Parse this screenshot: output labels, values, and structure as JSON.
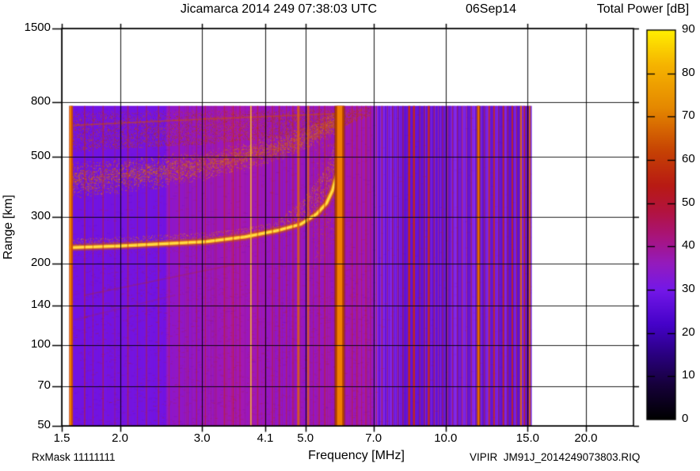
{
  "header": {
    "title": "Jicamarca 2014 249 07:38:03 UTC",
    "date_label": "06Sep14"
  },
  "colorbar": {
    "title": "Total Power [dB]",
    "min": 0,
    "max": 90,
    "tick_values": [
      90,
      80,
      70,
      60,
      50,
      40,
      30,
      20,
      10,
      0
    ],
    "gradient_stops": [
      {
        "v": 0,
        "c": "#000000"
      },
      {
        "v": 8,
        "c": "#16003a"
      },
      {
        "v": 15,
        "c": "#2a0080"
      },
      {
        "v": 22,
        "c": "#4502c9"
      },
      {
        "v": 30,
        "c": "#7418e8"
      },
      {
        "v": 36,
        "c": "#941bbd"
      },
      {
        "v": 42,
        "c": "#a8147e"
      },
      {
        "v": 48,
        "c": "#b21340"
      },
      {
        "v": 54,
        "c": "#b81a14"
      },
      {
        "v": 62,
        "c": "#c64204"
      },
      {
        "v": 72,
        "c": "#e58800"
      },
      {
        "v": 82,
        "c": "#f6b400"
      },
      {
        "v": 90,
        "c": "#ffef00"
      }
    ]
  },
  "axes": {
    "x": {
      "label": "Frequency [MHz]",
      "scale": "log",
      "min": 1.5,
      "max": 25.3,
      "ticks": [
        {
          "v": 1.5,
          "label": "1.5"
        },
        {
          "v": 2,
          "label": "2.0"
        },
        {
          "v": 3,
          "label": "3.0"
        },
        {
          "v": 4.1,
          "label": "4.1"
        },
        {
          "v": 5,
          "label": "5.0"
        },
        {
          "v": 7,
          "label": "7.0"
        },
        {
          "v": 10,
          "label": "10.0"
        },
        {
          "v": 15,
          "label": "15.0"
        },
        {
          "v": 20,
          "label": "20.0"
        }
      ]
    },
    "y": {
      "label": "Range [km]",
      "scale": "log",
      "min": 50,
      "max": 1500,
      "ticks": [
        {
          "v": 1500,
          "label": "1500"
        },
        {
          "v": 800,
          "label": "800"
        },
        {
          "v": 500,
          "label": "500"
        },
        {
          "v": 300,
          "label": "300"
        },
        {
          "v": 200,
          "label": "200"
        },
        {
          "v": 140,
          "label": "140"
        },
        {
          "v": 100,
          "label": "100"
        },
        {
          "v": 70,
          "label": "70"
        },
        {
          "v": 50,
          "label": "50"
        }
      ]
    }
  },
  "footer": {
    "left": "RxMask 11111111",
    "right": "VIPIR  JM91J_2014249073803.RIQ"
  },
  "chart_data": {
    "type": "heatmap",
    "title": "Jicamarca 2014 249 07:38:03 UTC 06Sep14",
    "xlabel": "Frequency [MHz]",
    "ylabel": "Range [km]",
    "zlabel": "Total Power [dB]",
    "x_scale": "log",
    "y_scale": "log",
    "x_range": [
      1.5,
      25.3
    ],
    "y_range": [
      50,
      1500
    ],
    "z_range": [
      0,
      90
    ],
    "data_extent": {
      "f_min": 1.555,
      "f_max": 15.3,
      "r_min": 50,
      "r_max": 775
    },
    "start_frequency_mhz": 1.56,
    "critical_frequency_mhz": 5.94,
    "background_level_db": 30,
    "f_layer_trace_mhz_km": [
      [
        1.57,
        230
      ],
      [
        1.99,
        233
      ],
      [
        2.52,
        238
      ],
      [
        3.06,
        242
      ],
      [
        3.71,
        252
      ],
      [
        4.35,
        266
      ],
      [
        4.89,
        281
      ],
      [
        5.29,
        307
      ],
      [
        5.55,
        336
      ],
      [
        5.72,
        376
      ],
      [
        5.86,
        437
      ],
      [
        5.9,
        520
      ],
      [
        5.93,
        620
      ],
      [
        5.94,
        695
      ]
    ],
    "second_hop_trace_mhz_km": [
      [
        1.57,
        410
      ],
      [
        1.99,
        425
      ],
      [
        2.52,
        445
      ],
      [
        3.06,
        468
      ],
      [
        3.71,
        503
      ],
      [
        4.35,
        539
      ],
      [
        5.07,
        594
      ],
      [
        5.72,
        666
      ],
      [
        6.04,
        709
      ]
    ],
    "noise_band_top_km": 775,
    "noise_band_bottom_mhz_km": [
      [
        1.57,
        525
      ],
      [
        3.0,
        558
      ],
      [
        4.35,
        590
      ],
      [
        6.0,
        650
      ],
      [
        6.9,
        715
      ]
    ],
    "faint_echo_line_mhz_km": [
      [
        1.6,
        655
      ],
      [
        3.0,
        690
      ],
      [
        6.0,
        725
      ]
    ],
    "faint_diagonals_mhz_km": [
      [
        [
          1.68,
          153
        ],
        [
          3.57,
          200
        ]
      ],
      [
        [
          1.6,
          124
        ],
        [
          2.62,
          153
        ]
      ]
    ],
    "rfi_bands": [
      {
        "f0": 5.79,
        "f1": 6.06,
        "core": "#ef7e02",
        "edge": "#b04000"
      },
      {
        "f0": 11.68,
        "f1": 11.84,
        "core": "#e87206",
        "edge": "#b84400"
      }
    ],
    "rfi_lines_f_w_color_alpha": [
      [
        1.565,
        3.2,
        "#f28a00",
        1
      ],
      [
        1.578,
        2.4,
        "#cc4c00",
        0.9
      ],
      [
        1.68,
        1.5,
        "#c92806",
        0.55
      ],
      [
        1.75,
        1,
        "#c92806",
        0.45
      ],
      [
        1.84,
        1.5,
        "#c92806",
        0.5
      ],
      [
        1.95,
        1,
        "#c92806",
        0.4
      ],
      [
        2.08,
        1.5,
        "#c92806",
        0.55
      ],
      [
        2.18,
        1,
        "#c92806",
        0.4
      ],
      [
        2.28,
        1.5,
        "#c92806",
        0.45
      ],
      [
        2.42,
        1.5,
        "#c92806",
        0.5
      ],
      [
        2.55,
        1,
        "#c92806",
        0.4
      ],
      [
        2.68,
        1.5,
        "#c92806",
        0.5
      ],
      [
        2.8,
        1,
        "#c92806",
        0.4
      ],
      [
        2.92,
        1.5,
        "#c92806",
        0.45
      ],
      [
        3.05,
        1.5,
        "#c92806",
        0.5
      ],
      [
        3.2,
        1,
        "#c92806",
        0.4
      ],
      [
        3.35,
        1.5,
        "#c92806",
        0.5
      ],
      [
        3.5,
        1.5,
        "#c92806",
        0.55
      ],
      [
        3.62,
        1,
        "#c92806",
        0.45
      ],
      [
        3.82,
        1.5,
        "#ffd02a",
        0.9
      ],
      [
        3.95,
        1.5,
        "#c92806",
        0.5
      ],
      [
        4.1,
        1,
        "#c92806",
        0.4
      ],
      [
        4.25,
        1.5,
        "#c92806",
        0.5
      ],
      [
        4.4,
        1.5,
        "#c92806",
        0.55
      ],
      [
        4.55,
        1,
        "#c92806",
        0.45
      ],
      [
        4.7,
        1.5,
        "#c92806",
        0.5
      ],
      [
        4.83,
        3,
        "#e06010",
        0.85
      ],
      [
        5.07,
        2.5,
        "#e06010",
        0.8
      ],
      [
        5.2,
        1,
        "#c92806",
        0.45
      ],
      [
        5.35,
        1.5,
        "#c92806",
        0.5
      ],
      [
        5.5,
        1.5,
        "#c92806",
        0.55
      ],
      [
        6.3,
        1.5,
        "#c92806",
        0.5
      ],
      [
        6.45,
        1.5,
        "#c92806",
        0.55
      ],
      [
        6.6,
        1,
        "#c92806",
        0.45
      ],
      [
        6.75,
        1.5,
        "#c92806",
        0.5
      ],
      [
        6.9,
        1,
        "#c92806",
        0.4
      ],
      [
        7.1,
        1.5,
        "#c92806",
        0.5
      ],
      [
        7.3,
        1.5,
        "#c92806",
        0.55
      ],
      [
        7.5,
        1,
        "#c92806",
        0.45
      ],
      [
        7.7,
        1.5,
        "#c92806",
        0.5
      ],
      [
        7.9,
        1.5,
        "#c92806",
        0.45
      ],
      [
        8.1,
        1.5,
        "#c92806",
        0.5
      ],
      [
        8.35,
        2.5,
        "#d02a04",
        0.9
      ],
      [
        8.55,
        2.5,
        "#d02a04",
        0.85
      ],
      [
        8.8,
        1.5,
        "#c92806",
        0.5
      ],
      [
        9.0,
        1.5,
        "#c92806",
        0.5
      ],
      [
        9.2,
        2.5,
        "#d02a04",
        0.85
      ],
      [
        9.45,
        1.5,
        "#c92806",
        0.5
      ],
      [
        9.65,
        1,
        "#c92806",
        0.4
      ],
      [
        9.85,
        1.5,
        "#c92806",
        0.5
      ],
      [
        10.1,
        1.5,
        "#c92806",
        0.5
      ],
      [
        10.35,
        1.5,
        "#c92806",
        0.5
      ],
      [
        10.6,
        1.5,
        "#c92806",
        0.45
      ],
      [
        10.85,
        1.5,
        "#c92806",
        0.5
      ],
      [
        11.1,
        1.5,
        "#c92806",
        0.45
      ],
      [
        11.35,
        1.5,
        "#c92806",
        0.5
      ],
      [
        12.1,
        1.5,
        "#c92806",
        0.55
      ],
      [
        12.4,
        2,
        "#d02a04",
        0.8
      ],
      [
        12.7,
        2,
        "#d02a04",
        0.8
      ],
      [
        13.0,
        1.5,
        "#c92806",
        0.55
      ],
      [
        13.3,
        2,
        "#d02a04",
        0.8
      ],
      [
        13.6,
        1.5,
        "#c92806",
        0.55
      ],
      [
        13.9,
        2,
        "#d02a04",
        0.8
      ],
      [
        14.2,
        1.5,
        "#c92806",
        0.6
      ],
      [
        14.5,
        2.5,
        "#e86f06",
        0.9
      ],
      [
        14.75,
        2,
        "#d02a04",
        0.8
      ],
      [
        15.0,
        1.5,
        "#c92806",
        0.6
      ],
      [
        15.15,
        2,
        "#e86f06",
        0.85
      ],
      [
        10.2,
        4,
        "#5a10c8",
        0.5
      ],
      [
        10.45,
        3,
        "#8d2df0",
        0.5
      ],
      [
        10.7,
        4,
        "#5a10c8",
        0.45
      ],
      [
        10.95,
        3,
        "#8d2df0",
        0.5
      ],
      [
        11.2,
        4,
        "#5a10c8",
        0.5
      ],
      [
        11.5,
        3,
        "#8d2df0",
        0.5
      ],
      [
        12.0,
        4,
        "#5a10c8",
        0.45
      ],
      [
        12.25,
        3,
        "#8d2df0",
        0.5
      ],
      [
        12.55,
        4,
        "#5a10c8",
        0.5
      ],
      [
        12.85,
        3,
        "#8d2df0",
        0.45
      ],
      [
        13.1,
        4,
        "#5a10c8",
        0.5
      ],
      [
        13.45,
        3,
        "#8d2df0",
        0.5
      ],
      [
        13.75,
        4,
        "#5a10c8",
        0.45
      ],
      [
        14.1,
        3,
        "#8d2df0",
        0.5
      ],
      [
        14.35,
        4,
        "#5a10c8",
        0.5
      ],
      [
        14.65,
        3,
        "#8d2df0",
        0.45
      ]
    ],
    "palette": {
      "violet_blue": "#6c12e6",
      "violet": "#7d15da",
      "magenta": "#a818ae",
      "deep_violet": "#5c0ed0",
      "bright_violet": "#8d2df0",
      "speckle_dark": "#a82a08",
      "speckle_bright": "#d05c12",
      "hop_dark": "#bb4a0e",
      "hop_bright": "#e8861c",
      "blob_dark": "#bb3a08",
      "blob_bright": "#d96f14",
      "spread_dark": "#c2500e",
      "spread_bright": "#efa01e",
      "trace_halo": "rgba(200,90,8,0.5)",
      "trace_main": "rgba(255,185,15,0.95)",
      "trace_core": "rgba(255,227,88,0.95)",
      "grid": "rgba(0,0,0,0.88)",
      "frame": "#000000",
      "page_background": "#ffffff"
    },
    "legend_position": "right-colorbar",
    "grid": true
  }
}
